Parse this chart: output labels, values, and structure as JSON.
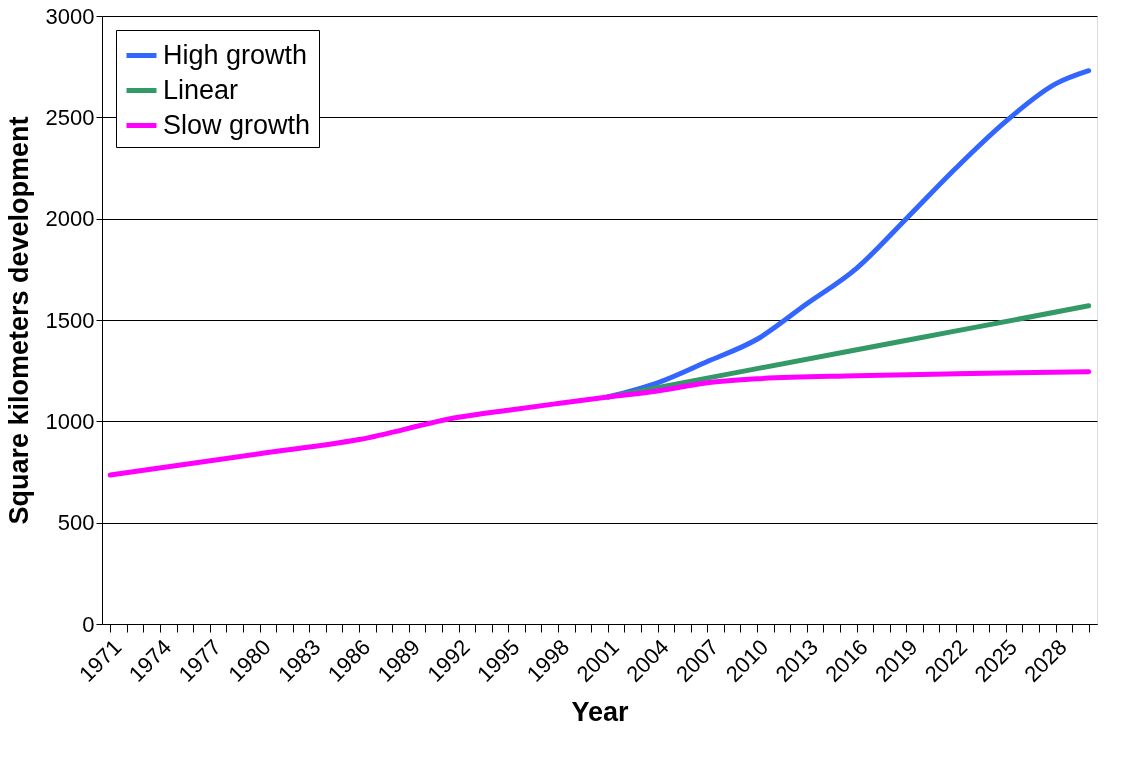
{
  "chart_data": {
    "type": "line",
    "xlabel": "Year",
    "ylabel": "Square kilometers development",
    "xlim": [
      1970.5,
      2030.5
    ],
    "ylim": [
      0,
      3000
    ],
    "yticks": [
      0,
      500,
      1000,
      1500,
      2000,
      2500,
      3000
    ],
    "xticks": [
      1971,
      {
        "value": 1972,
        "label": null
      },
      {
        "value": 1973,
        "label": null
      },
      1974,
      {
        "value": 1975,
        "label": null
      },
      {
        "value": 1976,
        "label": null
      },
      1977,
      {
        "value": 1978,
        "label": null
      },
      {
        "value": 1979,
        "label": null
      },
      1980,
      {
        "value": 1981,
        "label": null
      },
      {
        "value": 1982,
        "label": null
      },
      1983,
      {
        "value": 1984,
        "label": null
      },
      {
        "value": 1985,
        "label": null
      },
      1986,
      {
        "value": 1987,
        "label": null
      },
      {
        "value": 1988,
        "label": null
      },
      1989,
      {
        "value": 1990,
        "label": null
      },
      {
        "value": 1991,
        "label": null
      },
      1992,
      {
        "value": 1993,
        "label": null
      },
      {
        "value": 1994,
        "label": null
      },
      1995,
      {
        "value": 1996,
        "label": null
      },
      {
        "value": 1997,
        "label": null
      },
      1998,
      {
        "value": 1999,
        "label": null
      },
      {
        "value": 2000,
        "label": null
      },
      2001,
      {
        "value": 2002,
        "label": null
      },
      {
        "value": 2003,
        "label": null
      },
      2004,
      {
        "value": 2005,
        "label": null
      },
      {
        "value": 2006,
        "label": null
      },
      2007,
      {
        "value": 2008,
        "label": null
      },
      {
        "value": 2009,
        "label": null
      },
      2010,
      {
        "value": 2011,
        "label": null
      },
      {
        "value": 2012,
        "label": null
      },
      2013,
      {
        "value": 2014,
        "label": null
      },
      {
        "value": 2015,
        "label": null
      },
      2016,
      {
        "value": 2017,
        "label": null
      },
      {
        "value": 2018,
        "label": null
      },
      2019,
      {
        "value": 2020,
        "label": null
      },
      {
        "value": 2021,
        "label": null
      },
      2022,
      {
        "value": 2023,
        "label": null
      },
      {
        "value": 2024,
        "label": null
      },
      2025,
      {
        "value": 2026,
        "label": null
      },
      {
        "value": 2027,
        "label": null
      },
      2028,
      {
        "value": 2029,
        "label": null
      },
      {
        "value": 2030,
        "label": null
      }
    ],
    "grid": "y",
    "legend": "top left",
    "marker": "none",
    "line_style": "solid",
    "series": [
      {
        "name": "High growth",
        "color": "#3366ff",
        "x": [
          2001,
          2004,
          2007,
          2010,
          2013,
          2016,
          2019,
          2022,
          2025,
          2028,
          2030
        ],
        "values": [
          1120,
          1190,
          1295,
          1405,
          1580,
          1755,
          2000,
          2250,
          2480,
          2665,
          2730
        ]
      },
      {
        "name": "Linear",
        "color": "#339966",
        "x": [
          2001,
          2010,
          2020,
          2030
        ],
        "values": [
          1120,
          1260,
          1415,
          1570
        ]
      },
      {
        "name": "Slow growth",
        "color": "#ff00ff",
        "x": [
          1971,
          1980,
          1986,
          1992,
          1995,
          1998,
          2001,
          2004,
          2007,
          2010,
          2016,
          2022,
          2030
        ],
        "values": [
          735,
          840,
          910,
          1020,
          1055,
          1088,
          1120,
          1150,
          1190,
          1210,
          1225,
          1235,
          1245
        ]
      }
    ]
  }
}
